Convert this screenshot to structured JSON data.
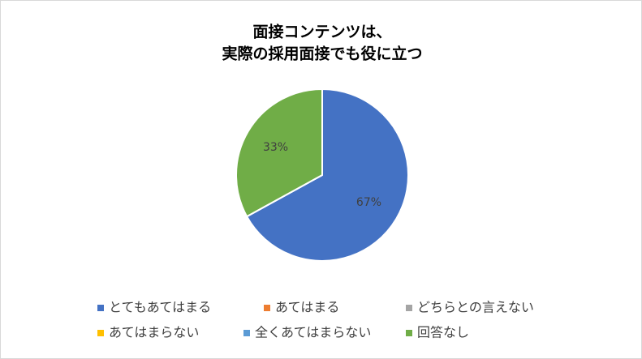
{
  "chart_data": {
    "type": "pie",
    "title": [
      "面接コンテンツは、",
      "実際の採用面接でも役に立つ"
    ],
    "categories": [
      "とてもあてはまる",
      "あてはまる",
      "どちらとの言えない",
      "あてはまらない",
      "全くあてはまらない",
      "回答なし"
    ],
    "values": [
      67,
      0,
      0,
      0,
      0,
      33
    ],
    "value_labels": [
      "67%",
      null,
      null,
      null,
      null,
      "33%"
    ],
    "colors": [
      "#4472c4",
      "#ed7d31",
      "#a5a5a5",
      "#ffc000",
      "#5b9bd5",
      "#70ad47"
    ],
    "legend": "bottom"
  }
}
